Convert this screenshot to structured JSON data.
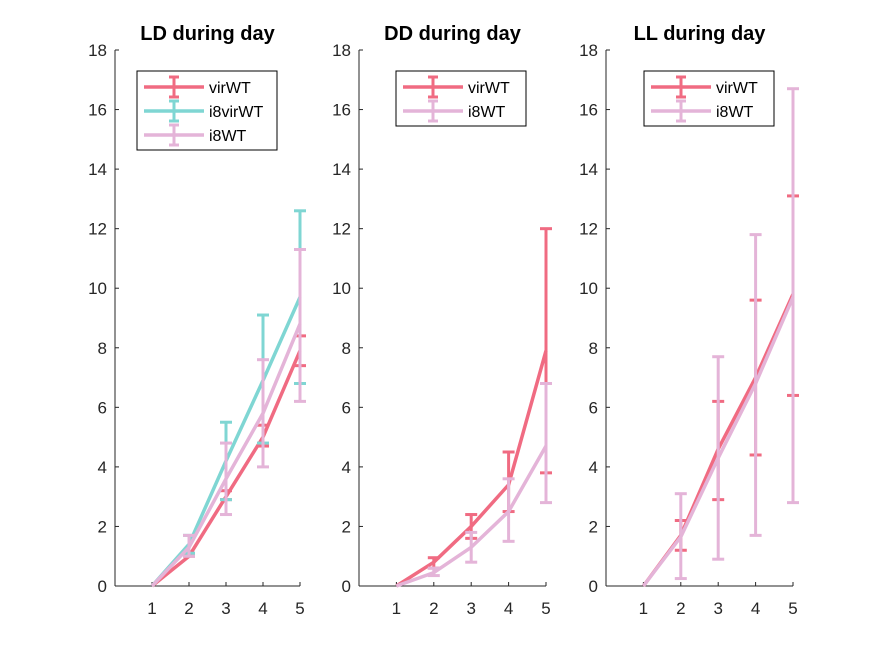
{
  "colors": {
    "virWT": "#f06b82",
    "i8virWT": "#7fd6d3",
    "i8WT": "#e4b4d8",
    "axis": "#262626"
  },
  "chart_data": [
    {
      "type": "line",
      "title": "LD during day",
      "xlabel": "",
      "ylabel": "",
      "x": [
        1,
        2,
        3,
        4,
        5
      ],
      "xlim": [
        0,
        5
      ],
      "ylim": [
        0,
        18
      ],
      "xticks": [
        "1",
        "2",
        "3",
        "4",
        "5"
      ],
      "yticks": [
        "0",
        "2",
        "4",
        "6",
        "8",
        "10",
        "12",
        "14",
        "16",
        "18"
      ],
      "legend_placement": "top-center",
      "series": [
        {
          "name": "virWT",
          "color": "#f06b82",
          "values": [
            0,
            1.0,
            3.0,
            5.0,
            7.9
          ],
          "err_low": [
            0,
            1.0,
            2.9,
            4.7,
            7.4
          ],
          "err_high": [
            0,
            1.1,
            3.2,
            5.4,
            8.4
          ]
        },
        {
          "name": "i8virWT",
          "color": "#7fd6d3",
          "values": [
            0,
            1.4,
            4.2,
            6.9,
            9.7
          ],
          "err_low": [
            0,
            1.1,
            2.9,
            4.8,
            6.8
          ],
          "err_high": [
            0,
            1.7,
            5.5,
            9.1,
            12.6
          ]
        },
        {
          "name": "i8WT",
          "color": "#e4b4d8",
          "values": [
            0,
            1.3,
            3.6,
            5.8,
            8.8
          ],
          "err_low": [
            0,
            1.0,
            2.4,
            4.0,
            6.2
          ],
          "err_high": [
            0,
            1.7,
            4.8,
            7.6,
            11.3
          ]
        }
      ]
    },
    {
      "type": "line",
      "title": "DD during day",
      "xlabel": "",
      "ylabel": "",
      "x": [
        1,
        2,
        3,
        4,
        5
      ],
      "xlim": [
        0,
        5
      ],
      "ylim": [
        0,
        18
      ],
      "xticks": [
        "1",
        "2",
        "3",
        "4",
        "5"
      ],
      "yticks": [
        "0",
        "2",
        "4",
        "6",
        "8",
        "10",
        "12",
        "14",
        "16",
        "18"
      ],
      "legend_placement": "top-center",
      "series": [
        {
          "name": "virWT",
          "color": "#f06b82",
          "values": [
            0,
            0.8,
            2.0,
            3.4,
            7.9
          ],
          "err_low": [
            0,
            0.6,
            1.6,
            2.5,
            3.8
          ],
          "err_high": [
            0,
            0.95,
            2.4,
            4.5,
            12.0
          ]
        },
        {
          "name": "i8WT",
          "color": "#e4b4d8",
          "values": [
            0,
            0.45,
            1.3,
            2.5,
            4.7
          ],
          "err_low": [
            0,
            0.35,
            0.8,
            1.5,
            2.8
          ],
          "err_high": [
            0,
            0.6,
            1.8,
            3.6,
            6.8
          ]
        }
      ]
    },
    {
      "type": "line",
      "title": "LL during day",
      "xlabel": "",
      "ylabel": "",
      "x": [
        1,
        2,
        3,
        4,
        5
      ],
      "xlim": [
        0,
        5
      ],
      "ylim": [
        0,
        18
      ],
      "xticks": [
        "1",
        "2",
        "3",
        "4",
        "5"
      ],
      "yticks": [
        "0",
        "2",
        "4",
        "6",
        "8",
        "10",
        "12",
        "14",
        "16",
        "18"
      ],
      "legend_placement": "top-center",
      "series": [
        {
          "name": "virWT",
          "color": "#f06b82",
          "values": [
            0,
            1.7,
            4.6,
            7.0,
            9.8
          ],
          "err_low": [
            0,
            1.2,
            2.9,
            4.4,
            6.4
          ],
          "err_high": [
            0,
            2.2,
            6.2,
            9.6,
            13.1
          ]
        },
        {
          "name": "i8WT",
          "color": "#e4b4d8",
          "values": [
            0,
            1.65,
            4.3,
            6.8,
            9.7
          ],
          "err_low": [
            0,
            0.25,
            0.9,
            1.7,
            2.8
          ],
          "err_high": [
            0,
            3.1,
            7.7,
            11.8,
            16.7
          ]
        }
      ]
    }
  ]
}
